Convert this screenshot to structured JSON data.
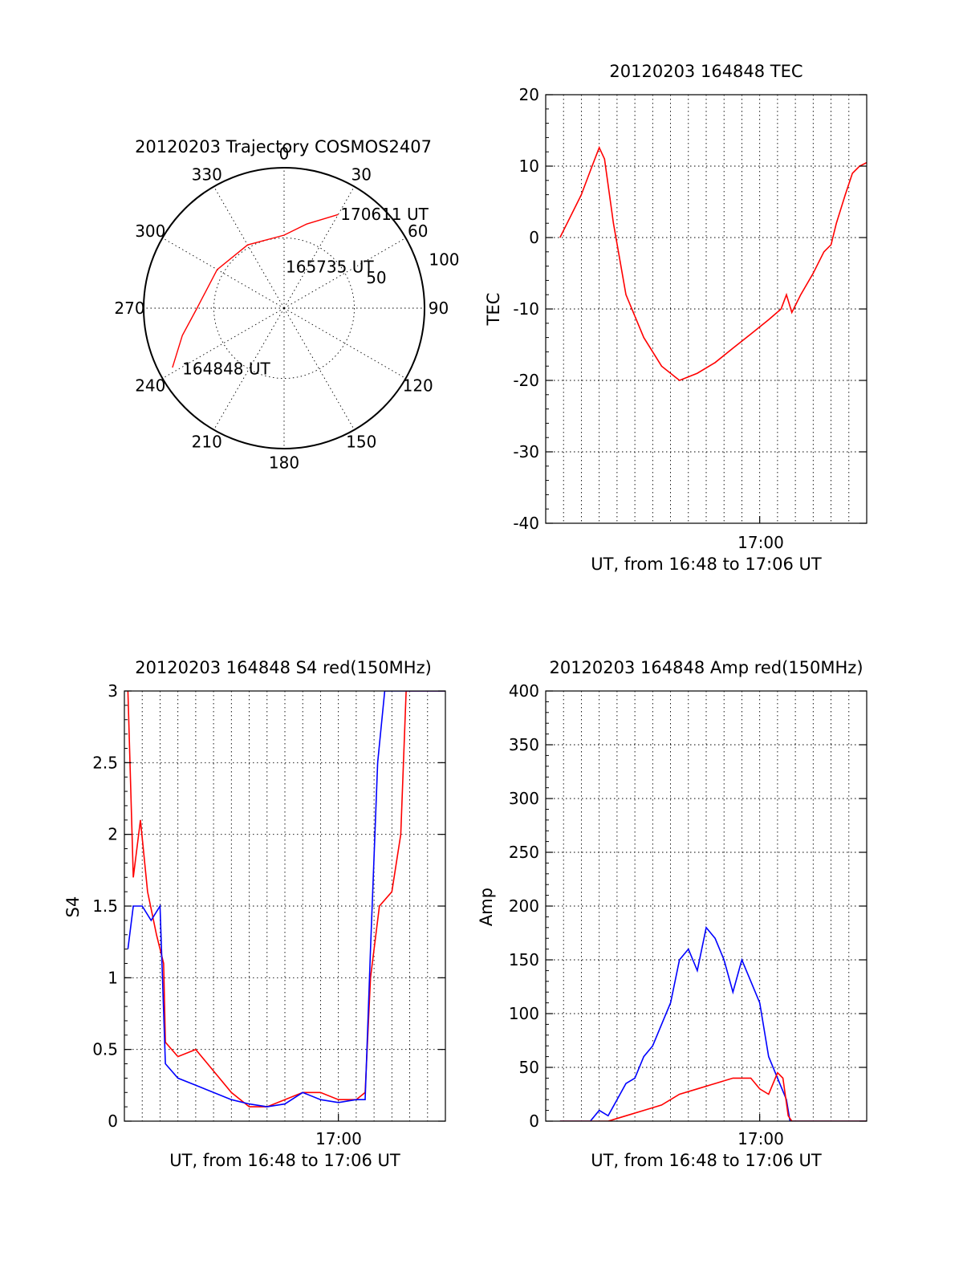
{
  "chart_data": [
    {
      "id": "trajectory",
      "type": "polar",
      "title": "20120203 Trajectory COSMOS2407",
      "azimuth_labels": [
        "0",
        "30",
        "60",
        "90",
        "120",
        "150",
        "180",
        "210",
        "240",
        "270",
        "300",
        "330"
      ],
      "radial_labels": [
        "50",
        "100"
      ],
      "rmax": 100,
      "annotations": [
        {
          "text": "170611 UT",
          "az": 30,
          "r": 78
        },
        {
          "text": "165735 UT",
          "az": 0,
          "r": 30
        },
        {
          "text": "164848 UT",
          "az": 240,
          "r": 85
        }
      ],
      "series": [
        {
          "color": "#ff0000",
          "points": [
            [
              30,
              77
            ],
            [
              15,
              62
            ],
            [
              0,
              52
            ],
            [
              330,
              52
            ],
            [
              300,
              55
            ],
            [
              270,
              62
            ],
            [
              255,
              75
            ],
            [
              242,
              90
            ]
          ]
        }
      ]
    },
    {
      "id": "tec",
      "type": "line",
      "title": "20120203 164848 TEC",
      "ylabel": "TEC",
      "xlabel": "UT, from 16:48 to 17:06 UT",
      "xtick_label": "17:00",
      "ylim": [
        -40,
        20
      ],
      "yticks": [
        "20",
        "10",
        "0",
        "-10",
        "-20",
        "-30",
        "-40"
      ],
      "xlim_minutes": [
        0,
        18
      ],
      "series": [
        {
          "color": "#ff0000",
          "points": [
            [
              0.8,
              0
            ],
            [
              1.2,
              2
            ],
            [
              2.0,
              6
            ],
            [
              2.6,
              10
            ],
            [
              3.0,
              12.6
            ],
            [
              3.3,
              11
            ],
            [
              3.8,
              2
            ],
            [
              4.5,
              -8
            ],
            [
              5.5,
              -14
            ],
            [
              6.5,
              -18
            ],
            [
              7.5,
              -20
            ],
            [
              8.5,
              -19
            ],
            [
              9.5,
              -17.5
            ],
            [
              10.5,
              -15.5
            ],
            [
              11.5,
              -13.5
            ],
            [
              12.5,
              -11.5
            ],
            [
              13.2,
              -10
            ],
            [
              13.5,
              -8
            ],
            [
              13.8,
              -10.5
            ],
            [
              14.3,
              -8
            ],
            [
              15,
              -5
            ],
            [
              15.6,
              -2
            ],
            [
              16,
              -1
            ],
            [
              16.3,
              2
            ],
            [
              16.8,
              6
            ],
            [
              17.2,
              9
            ],
            [
              17.6,
              10
            ],
            [
              18,
              10.5
            ]
          ]
        }
      ]
    },
    {
      "id": "s4",
      "type": "line",
      "title": "20120203 164848 S4 red(150MHz)",
      "ylabel": "S4",
      "xlabel": "UT, from 16:48 to 17:06 UT",
      "xtick_label": "17:00",
      "ylim": [
        0,
        3
      ],
      "yticks": [
        "3",
        "2.5",
        "2",
        "1.5",
        "1",
        "0.5",
        "0"
      ],
      "xlim_minutes": [
        0,
        18
      ],
      "series": [
        {
          "color": "#ff0000",
          "points": [
            [
              0.2,
              3.0
            ],
            [
              0.5,
              1.7
            ],
            [
              0.9,
              2.1
            ],
            [
              1.3,
              1.6
            ],
            [
              1.8,
              1.3
            ],
            [
              2.2,
              1.1
            ],
            [
              2.3,
              0.55
            ],
            [
              3.0,
              0.45
            ],
            [
              4.0,
              0.5
            ],
            [
              5.0,
              0.35
            ],
            [
              6.0,
              0.2
            ],
            [
              7.0,
              0.1
            ],
            [
              8.0,
              0.1
            ],
            [
              9.0,
              0.15
            ],
            [
              10.0,
              0.2
            ],
            [
              11.0,
              0.2
            ],
            [
              12.0,
              0.15
            ],
            [
              13.0,
              0.15
            ],
            [
              13.5,
              0.2
            ],
            [
              13.8,
              1.0
            ],
            [
              14.3,
              1.5
            ],
            [
              15.0,
              1.6
            ],
            [
              15.5,
              2.0
            ],
            [
              15.8,
              3.0
            ],
            [
              16.5,
              3.0
            ],
            [
              17.5,
              3.0
            ],
            [
              18,
              3.0
            ]
          ]
        },
        {
          "color": "#0000ff",
          "points": [
            [
              0.2,
              1.2
            ],
            [
              0.5,
              1.5
            ],
            [
              1.0,
              1.5
            ],
            [
              1.5,
              1.4
            ],
            [
              2.0,
              1.5
            ],
            [
              2.3,
              0.4
            ],
            [
              3.0,
              0.3
            ],
            [
              4.0,
              0.25
            ],
            [
              5.0,
              0.2
            ],
            [
              6.0,
              0.15
            ],
            [
              7.0,
              0.12
            ],
            [
              8.0,
              0.1
            ],
            [
              9.0,
              0.12
            ],
            [
              10.0,
              0.2
            ],
            [
              11.0,
              0.15
            ],
            [
              12.0,
              0.13
            ],
            [
              13.0,
              0.15
            ],
            [
              13.5,
              0.15
            ],
            [
              13.8,
              1.2
            ],
            [
              14.2,
              2.5
            ],
            [
              14.6,
              3.0
            ],
            [
              15.5,
              3.0
            ],
            [
              16.5,
              3.0
            ],
            [
              17.5,
              3.0
            ],
            [
              18,
              3.0
            ]
          ]
        }
      ]
    },
    {
      "id": "amp",
      "type": "line",
      "title": "20120203 164848 Amp red(150MHz)",
      "ylabel": "Amp",
      "xlabel": "UT, from 16:48 to 17:06 UT",
      "xtick_label": "17:00",
      "ylim": [
        0,
        400
      ],
      "yticks": [
        "400",
        "350",
        "300",
        "250",
        "200",
        "150",
        "100",
        "50",
        "0"
      ],
      "xlim_minutes": [
        0,
        18
      ],
      "series": [
        {
          "color": "#0000ff",
          "points": [
            [
              0.8,
              0
            ],
            [
              2.5,
              0
            ],
            [
              3.0,
              10
            ],
            [
              3.5,
              5
            ],
            [
              4.0,
              20
            ],
            [
              4.5,
              35
            ],
            [
              5.0,
              40
            ],
            [
              5.5,
              60
            ],
            [
              6.0,
              70
            ],
            [
              6.5,
              90
            ],
            [
              7.0,
              110
            ],
            [
              7.5,
              150
            ],
            [
              8.0,
              160
            ],
            [
              8.5,
              140
            ],
            [
              9.0,
              180
            ],
            [
              9.5,
              170
            ],
            [
              10.0,
              150
            ],
            [
              10.5,
              120
            ],
            [
              11.0,
              150
            ],
            [
              11.5,
              130
            ],
            [
              12.0,
              110
            ],
            [
              12.5,
              60
            ],
            [
              13.0,
              40
            ],
            [
              13.5,
              20
            ],
            [
              13.7,
              0
            ],
            [
              18,
              0
            ]
          ]
        },
        {
          "color": "#ff0000",
          "points": [
            [
              0.8,
              0
            ],
            [
              3.5,
              0
            ],
            [
              4.5,
              5
            ],
            [
              5.5,
              10
            ],
            [
              6.5,
              15
            ],
            [
              7.5,
              25
            ],
            [
              8.5,
              30
            ],
            [
              9.5,
              35
            ],
            [
              10.5,
              40
            ],
            [
              11.5,
              40
            ],
            [
              12.0,
              30
            ],
            [
              12.5,
              25
            ],
            [
              13.0,
              45
            ],
            [
              13.3,
              40
            ],
            [
              13.6,
              5
            ],
            [
              13.8,
              0
            ],
            [
              18,
              0
            ]
          ]
        }
      ]
    }
  ]
}
